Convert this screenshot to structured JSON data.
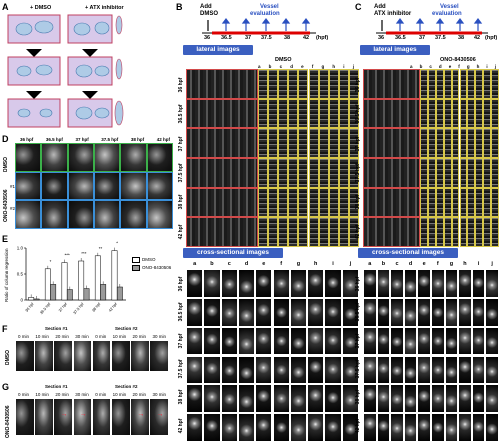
{
  "panels": {
    "A": "A",
    "B": "B",
    "C": "C",
    "D": "D",
    "E": "E",
    "F": "F",
    "G": "G"
  },
  "panelA": {
    "left_title": "+ DMSO",
    "right_title": "+ ATX inhibitor"
  },
  "panelB": {
    "add_label": "Add",
    "add_label2": "DMSO",
    "vessel_label": "Vessel",
    "vessel_label2": "evaluation",
    "ticks": [
      "36",
      "36.5",
      "37",
      "37.5",
      "38",
      "42"
    ],
    "unit": "(hpf)",
    "lateral": "lateral images",
    "condition": "DMSO",
    "cross": "cross-sectional images",
    "rows": [
      "36 hpf",
      "36.5 hpf",
      "37 hpf",
      "37.5 hpf",
      "38 hpf",
      "42 hpf"
    ],
    "cols": [
      "a",
      "b",
      "c",
      "d",
      "e",
      "f",
      "g",
      "h",
      "i",
      "j"
    ]
  },
  "panelC": {
    "add_label": "Add",
    "add_label2": "ATX inhibitor",
    "vessel_label": "Vessel",
    "vessel_label2": "evaluation",
    "ticks": [
      "36",
      "36.5",
      "37",
      "37.5",
      "38",
      "42"
    ],
    "unit": "(hpf)",
    "lateral": "lateral images",
    "condition": "ONO-8430506",
    "cross": "cross-sectional images"
  },
  "panelD": {
    "cols": [
      "36 hpf",
      "36.5 hpf",
      "37 hpf",
      "37.5 hpf",
      "38 hpf",
      "42 hpf"
    ],
    "row1": "DMSO",
    "row2": "ONO-8430506",
    "sub1": "#1",
    "sub2": "#2"
  },
  "panelE": {
    "ylabel": "Ratio of column regression",
    "legend": [
      "DMSO",
      "ONO-8430506"
    ],
    "colors": {
      "dmso": "#ffffff",
      "ono": "#9a9a9a"
    }
  },
  "chart_data": {
    "type": "bar",
    "categories": [
      "36 hpf",
      "36.5 hpf",
      "37 hpf",
      "37.5 hpf",
      "38 hpf",
      "42 hpf"
    ],
    "series": [
      {
        "name": "DMSO",
        "values": [
          0.05,
          0.6,
          0.72,
          0.75,
          0.85,
          0.95
        ]
      },
      {
        "name": "ONO-8430506",
        "values": [
          0.02,
          0.3,
          0.2,
          0.22,
          0.3,
          0.25
        ]
      }
    ],
    "ylabel": "Ratio of column regression",
    "ylim": [
      0,
      1.0
    ],
    "yticks": [
      "0",
      "0.5",
      "1.0"
    ],
    "significance": [
      "",
      "*",
      "***",
      "***",
      "**",
      "*"
    ]
  },
  "panelF": {
    "sec1": "Section #1",
    "sec2": "Section #2",
    "times": [
      "0 min",
      "10 min",
      "20 min",
      "30 min"
    ],
    "row": "DMSO"
  },
  "panelG": {
    "sec1": "Section #1",
    "sec2": "Section #2",
    "times": [
      "0 min",
      "10 min",
      "20 min",
      "30 min"
    ],
    "row": "ONO-8430506"
  }
}
